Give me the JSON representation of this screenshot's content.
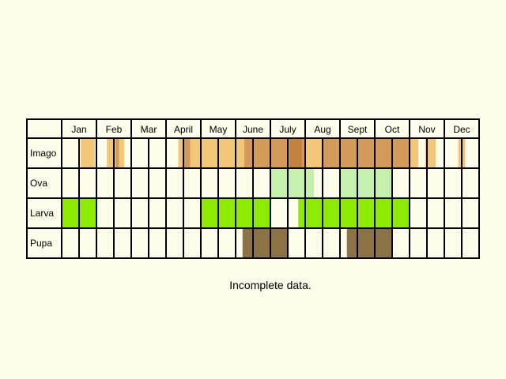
{
  "chart_data": {
    "type": "table",
    "title": "",
    "months": [
      "Jan",
      "Feb",
      "Mar",
      "April",
      "May",
      "June",
      "July",
      "Aug",
      "Sept",
      "Oct",
      "Nov",
      "Dec"
    ],
    "rows": [
      "Imago",
      "Ova",
      "Larva",
      "Pupa"
    ],
    "time_unit": "month (each month split into two halves)",
    "colors": {
      "background": "#fdfbe9",
      "grid": "#000000",
      "imago_light": "#f2c878",
      "imago_dark": "#d49a5a",
      "imago_darker": "#c28140",
      "ova": "#c4efad",
      "larva": "#8eea00",
      "pupa": "#8c7346"
    },
    "bars": [
      {
        "row": "Imago",
        "start": 1.55,
        "end": 1.95,
        "color": "imago_light"
      },
      {
        "row": "Imago",
        "start": 2.3,
        "end": 2.55,
        "color": "imago_light"
      },
      {
        "row": "Imago",
        "start": 2.55,
        "end": 2.65,
        "color": "imago_dark"
      },
      {
        "row": "Imago",
        "start": 2.65,
        "end": 2.8,
        "color": "imago_light"
      },
      {
        "row": "Imago",
        "start": 4.35,
        "end": 4.6,
        "color": "imago_light"
      },
      {
        "row": "Imago",
        "start": 4.5,
        "end": 4.7,
        "color": "imago_dark"
      },
      {
        "row": "Imago",
        "start": 4.7,
        "end": 5.05,
        "color": "imago_light"
      },
      {
        "row": "Imago",
        "start": 5.0,
        "end": 6.25,
        "color": "imago_light"
      },
      {
        "row": "Imago",
        "start": 6.25,
        "end": 8.0,
        "color": "imago_dark"
      },
      {
        "row": "Imago",
        "start": 7.55,
        "end": 7.9,
        "color": "imago_darker"
      },
      {
        "row": "Imago",
        "start": 8.0,
        "end": 8.5,
        "color": "imago_light"
      },
      {
        "row": "Imago",
        "start": 8.5,
        "end": 11.0,
        "color": "imago_dark"
      },
      {
        "row": "Imago",
        "start": 11.0,
        "end": 11.25,
        "color": "imago_light"
      },
      {
        "row": "Imago",
        "start": 11.45,
        "end": 11.75,
        "color": "imago_light"
      },
      {
        "row": "Imago",
        "start": 12.4,
        "end": 12.6,
        "color": "imago_light"
      },
      {
        "row": "Ova",
        "start": 7.0,
        "end": 8.25,
        "color": "ova"
      },
      {
        "row": "Ova",
        "start": 9.0,
        "end": 10.5,
        "color": "ova"
      },
      {
        "row": "Larva",
        "start": 1.0,
        "end": 2.0,
        "color": "larva"
      },
      {
        "row": "Larva",
        "start": 5.0,
        "end": 7.0,
        "color": "larva"
      },
      {
        "row": "Larva",
        "start": 7.8,
        "end": 11.0,
        "color": "larva"
      },
      {
        "row": "Pupa",
        "start": 6.2,
        "end": 7.5,
        "color": "pupa"
      },
      {
        "row": "Pupa",
        "start": 9.2,
        "end": 10.5,
        "color": "pupa"
      }
    ],
    "grid": true,
    "legend": "none"
  },
  "caption": "Incomplete data."
}
